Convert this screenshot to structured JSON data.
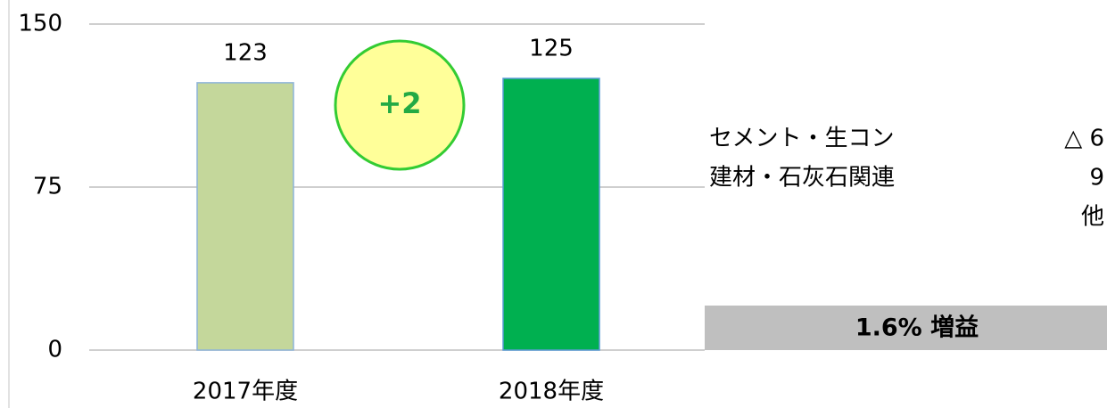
{
  "chart_data": {
    "type": "bar",
    "categories": [
      "2017年度",
      "2018年度"
    ],
    "values": [
      123,
      125
    ],
    "colors": [
      "#c4d79b",
      "#00b050"
    ],
    "ylim": [
      0,
      150
    ],
    "yticks": [
      0,
      75,
      150
    ],
    "grid": true,
    "annotations": {
      "difference": "+2",
      "summary": "1.6%  増益"
    },
    "breakdown": [
      {
        "label": "セメント・生コン",
        "value": "△ 6"
      },
      {
        "label": "建材・石灰石関連",
        "value": "9"
      },
      {
        "label": "",
        "value": "他"
      }
    ]
  }
}
